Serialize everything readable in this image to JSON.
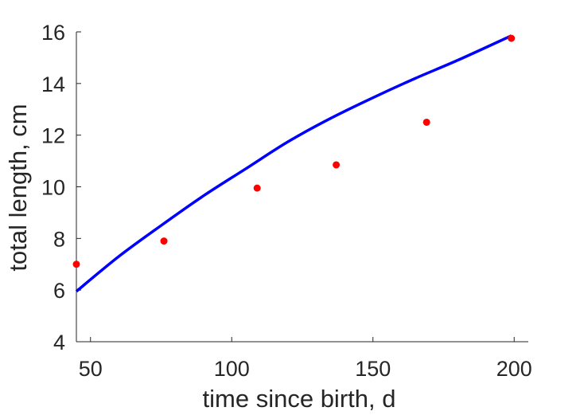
{
  "chart_data": {
    "type": "scatter",
    "title": "",
    "xlabel": "time since birth, d",
    "ylabel": "total length, cm",
    "xlim": [
      45,
      205
    ],
    "ylim": [
      4,
      16
    ],
    "xticks": [
      50,
      100,
      150,
      200
    ],
    "yticks": [
      4,
      6,
      8,
      10,
      12,
      14,
      16
    ],
    "grid": false,
    "legend": "none",
    "series": [
      {
        "kind": "scatter",
        "color": "#ff0000",
        "x": [
          45,
          76,
          109,
          137,
          169,
          199
        ],
        "y": [
          7.0,
          7.9,
          9.95,
          10.85,
          12.5,
          15.75
        ]
      },
      {
        "kind": "line",
        "color": "#0000ff",
        "x": [
          45,
          60,
          75,
          90,
          105,
          120,
          135,
          150,
          165,
          180,
          199
        ],
        "y": [
          5.95,
          7.3,
          8.5,
          9.65,
          10.7,
          11.75,
          12.65,
          13.45,
          14.2,
          14.9,
          15.85
        ]
      }
    ]
  }
}
